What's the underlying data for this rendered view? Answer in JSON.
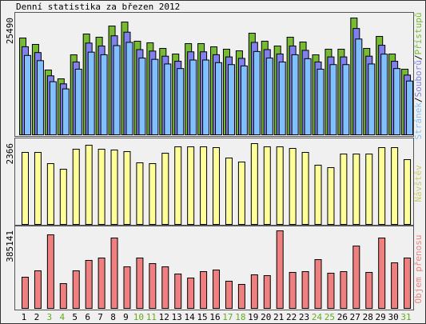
{
  "chart_data": [
    {
      "type": "bar",
      "title": "Denní statistika za březen 2012",
      "categories": [
        "1",
        "2",
        "3",
        "4",
        "5",
        "6",
        "7",
        "8",
        "9",
        "10",
        "11",
        "12",
        "13",
        "14",
        "15",
        "16",
        "17",
        "18",
        "19",
        "20",
        "21",
        "22",
        "23",
        "24",
        "25",
        "26",
        "27",
        "28",
        "29",
        "30",
        "31"
      ],
      "series": [
        {
          "name": "Přístupů",
          "color": "#77bb33",
          "values": [
            21125,
            19730,
            14140,
            12220,
            17460,
            22000,
            21300,
            23745,
            24615,
            20425,
            20080,
            18855,
            17635,
            19905,
            19905,
            19205,
            18680,
            18330,
            22170,
            20425,
            19380,
            21300,
            20250,
            17460,
            18680,
            18680,
            25490,
            18855,
            21475,
            17635,
            14315
          ]
        },
        {
          "name": "Souborů",
          "color": "#8080ee",
          "values": [
            19220,
            17950,
            12870,
            11120,
            15890,
            20020,
            19380,
            21610,
            22400,
            18590,
            18270,
            17160,
            16050,
            18110,
            18110,
            17480,
            17000,
            16680,
            20170,
            18590,
            17640,
            19380,
            18430,
            15890,
            17000,
            17000,
            23200,
            17160,
            19540,
            16050,
            13030
          ]
        },
        {
          "name": "Stránek",
          "color": "#80c0ff",
          "values": [
            17320,
            16180,
            11590,
            10020,
            14320,
            18040,
            17470,
            19470,
            20180,
            16750,
            16470,
            15460,
            14460,
            16320,
            16320,
            15750,
            15320,
            15030,
            18180,
            16750,
            15890,
            17470,
            16610,
            14320,
            15320,
            15320,
            20900,
            15460,
            17610,
            14460,
            11740
          ]
        }
      ],
      "legend_separator": "/",
      "ylim": [
        0,
        25490
      ],
      "yticks": [
        25490
      ]
    },
    {
      "type": "bar",
      "categories": [
        "1",
        "2",
        "3",
        "4",
        "5",
        "6",
        "7",
        "8",
        "9",
        "10",
        "11",
        "12",
        "13",
        "14",
        "15",
        "16",
        "17",
        "18",
        "19",
        "20",
        "21",
        "22",
        "23",
        "24",
        "25",
        "26",
        "27",
        "28",
        "29",
        "30",
        "31"
      ],
      "series": [
        {
          "name": "Návštěv",
          "color": "#ffff99",
          "label_color": "#cccc66",
          "values": [
            2108,
            2108,
            1780,
            1616,
            2202,
            2319,
            2202,
            2179,
            2132,
            1804,
            1780,
            2085,
            2272,
            2272,
            2272,
            2249,
            1944,
            1827,
            2366,
            2272,
            2272,
            2225,
            2108,
            1734,
            1663,
            2061,
            2061,
            2061,
            2249,
            2249,
            1897
          ]
        }
      ],
      "ylim": [
        0,
        2366
      ],
      "yticks": [
        2366
      ]
    },
    {
      "type": "bar",
      "categories": [
        "1",
        "2",
        "3",
        "4",
        "5",
        "6",
        "7",
        "8",
        "9",
        "10",
        "11",
        "12",
        "13",
        "14",
        "15",
        "16",
        "17",
        "18",
        "19",
        "20",
        "21",
        "22",
        "23",
        "24",
        "25",
        "26",
        "27",
        "28",
        "29",
        "30",
        "31"
      ],
      "series": [
        {
          "name": "Objem přenosu",
          "color": "#f08080",
          "label_color": "#f08080",
          "values": [
            154850,
            186620,
            365290,
            123090,
            186620,
            238230,
            250140,
            349410,
            206470,
            250140,
            222350,
            206470,
            170730,
            150880,
            182640,
            190590,
            135000,
            119110,
            166760,
            162790,
            385141,
            178670,
            182640,
            242200,
            174700,
            182640,
            309700,
            178670,
            349410,
            226320,
            250140
          ]
        }
      ],
      "ylim": [
        0,
        385141
      ],
      "yticks": [
        385141
      ],
      "highlight_categories": [
        "3",
        "4",
        "10",
        "11",
        "17",
        "18",
        "24",
        "25",
        "31"
      ],
      "highlight_color": "#66aa22"
    }
  ]
}
